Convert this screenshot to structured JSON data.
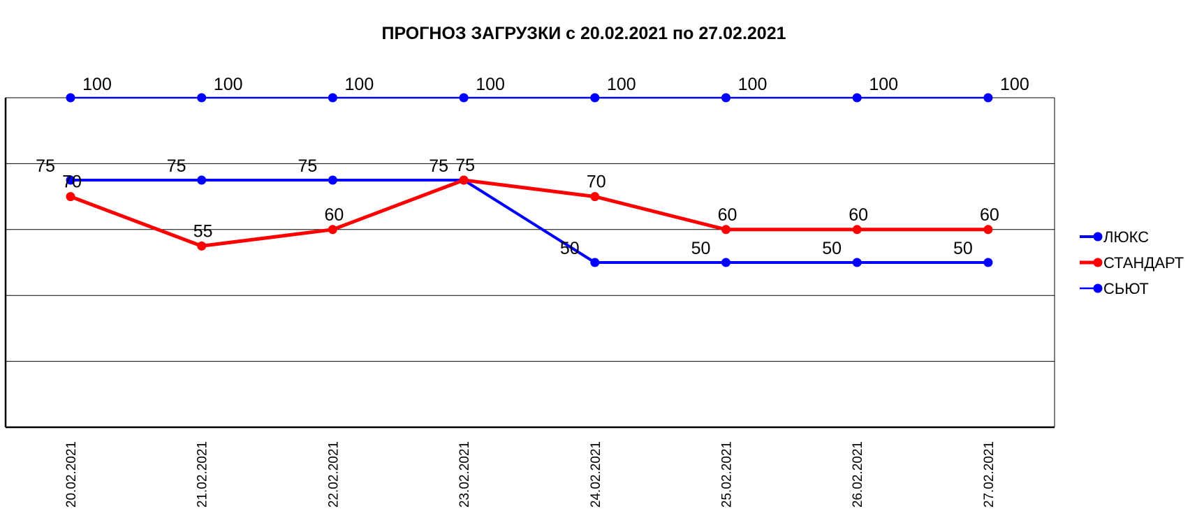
{
  "chart_data": {
    "type": "line",
    "title": "ПРОГНОЗ ЗАГРУЗКИ с 20.02.2021 по 27.02.2021",
    "xlabel": "",
    "ylabel": "",
    "categories": [
      "20.02.2021",
      "21.02.2021",
      "22.02.2021",
      "23.02.2021",
      "24.02.2021",
      "25.02.2021",
      "26.02.2021",
      "27.02.2021"
    ],
    "ylim": [
      0,
      100
    ],
    "grid": true,
    "legend": "right",
    "series": [
      {
        "name": "ЛЮКС",
        "values": [
          75,
          75,
          75,
          75,
          50,
          50,
          50,
          50
        ],
        "color": "#0000ff"
      },
      {
        "name": "СТАНДАРТ",
        "values": [
          70,
          55,
          60,
          75,
          70,
          60,
          60,
          60
        ],
        "color": "#ff0000"
      },
      {
        "name": "СЬЮТ",
        "values": [
          100,
          100,
          100,
          100,
          100,
          100,
          100,
          100
        ],
        "color": "#0000ff"
      }
    ]
  }
}
